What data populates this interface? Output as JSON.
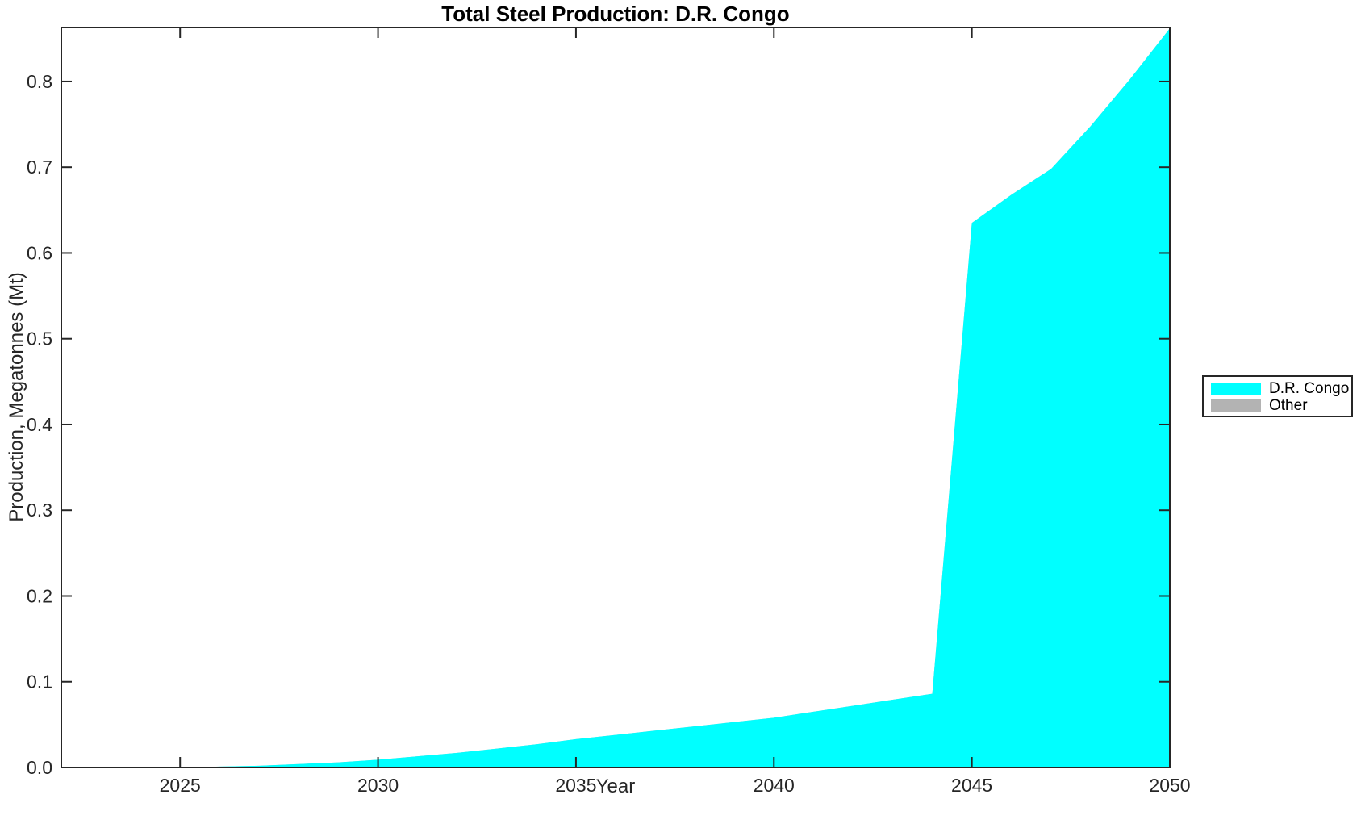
{
  "page": {
    "background": "#FFFFFF"
  },
  "chart_data": {
    "type": "area",
    "title": "Total Steel Production: D.R. Congo",
    "xlabel": "Year",
    "ylabel": "Production, Megatonnes (Mt)",
    "xlim": [
      2022,
      2050
    ],
    "ylim": [
      0,
      0.863
    ],
    "xticks": [
      "2025",
      "2030",
      "2035",
      "2040",
      "2045",
      "2050"
    ],
    "xtick_values": [
      2025,
      2030,
      2035,
      2040,
      2045,
      2050
    ],
    "yticks": [
      "0.0",
      "0.1",
      "0.2",
      "0.3",
      "0.4",
      "0.5",
      "0.6",
      "0.7",
      "0.8"
    ],
    "ytick_values": [
      0.0,
      0.1,
      0.2,
      0.3,
      0.4,
      0.5,
      0.6,
      0.7,
      0.8
    ],
    "grid": false,
    "legend_position": "right-outside",
    "axis_color": "#262626",
    "x": [
      2025,
      2026,
      2027,
      2028,
      2029,
      2030,
      2031,
      2032,
      2033,
      2034,
      2035,
      2036,
      2037,
      2038,
      2039,
      2040,
      2041,
      2042,
      2043,
      2044,
      2045,
      2046,
      2047,
      2048,
      2049,
      2050
    ],
    "series": [
      {
        "name": "D.R. Congo",
        "color": "#00FFFF",
        "values": [
          0.0,
          0.001,
          0.002,
          0.004,
          0.006,
          0.009,
          0.013,
          0.017,
          0.022,
          0.027,
          0.033,
          0.038,
          0.043,
          0.048,
          0.053,
          0.058,
          0.065,
          0.072,
          0.079,
          0.086,
          0.635,
          0.668,
          0.698,
          0.748,
          0.803,
          0.862
        ]
      },
      {
        "name": "Other",
        "color": "#B3B3B3",
        "values": [
          0,
          0,
          0,
          0,
          0,
          0,
          0,
          0,
          0,
          0,
          0,
          0,
          0,
          0,
          0,
          0,
          0,
          0,
          0,
          0,
          0,
          0,
          0,
          0,
          0,
          0
        ]
      }
    ]
  }
}
